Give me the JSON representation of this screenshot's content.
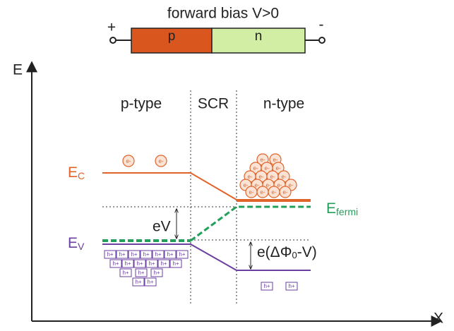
{
  "header": {
    "title": "forward bias V>0",
    "plus": "+",
    "minus": "-",
    "p_label": "p",
    "n_label": "n"
  },
  "axes": {
    "y_label": "E",
    "x_label": "X"
  },
  "regions": {
    "p": "p-type",
    "scr": "SCR",
    "n": "n-type"
  },
  "levels": {
    "conduction": {
      "symbol": "E",
      "subscript": "C"
    },
    "fermi": {
      "symbol": "E",
      "subscript": "fermi"
    },
    "valence": {
      "symbol": "E",
      "subscript": "V"
    }
  },
  "annotations": {
    "bias": "eV",
    "barrier": {
      "prefix": "e(ΔΦ",
      "subscript": "0",
      "suffix": "-V)"
    }
  },
  "carriers": {
    "electron": "e-",
    "hole": "h+"
  }
}
